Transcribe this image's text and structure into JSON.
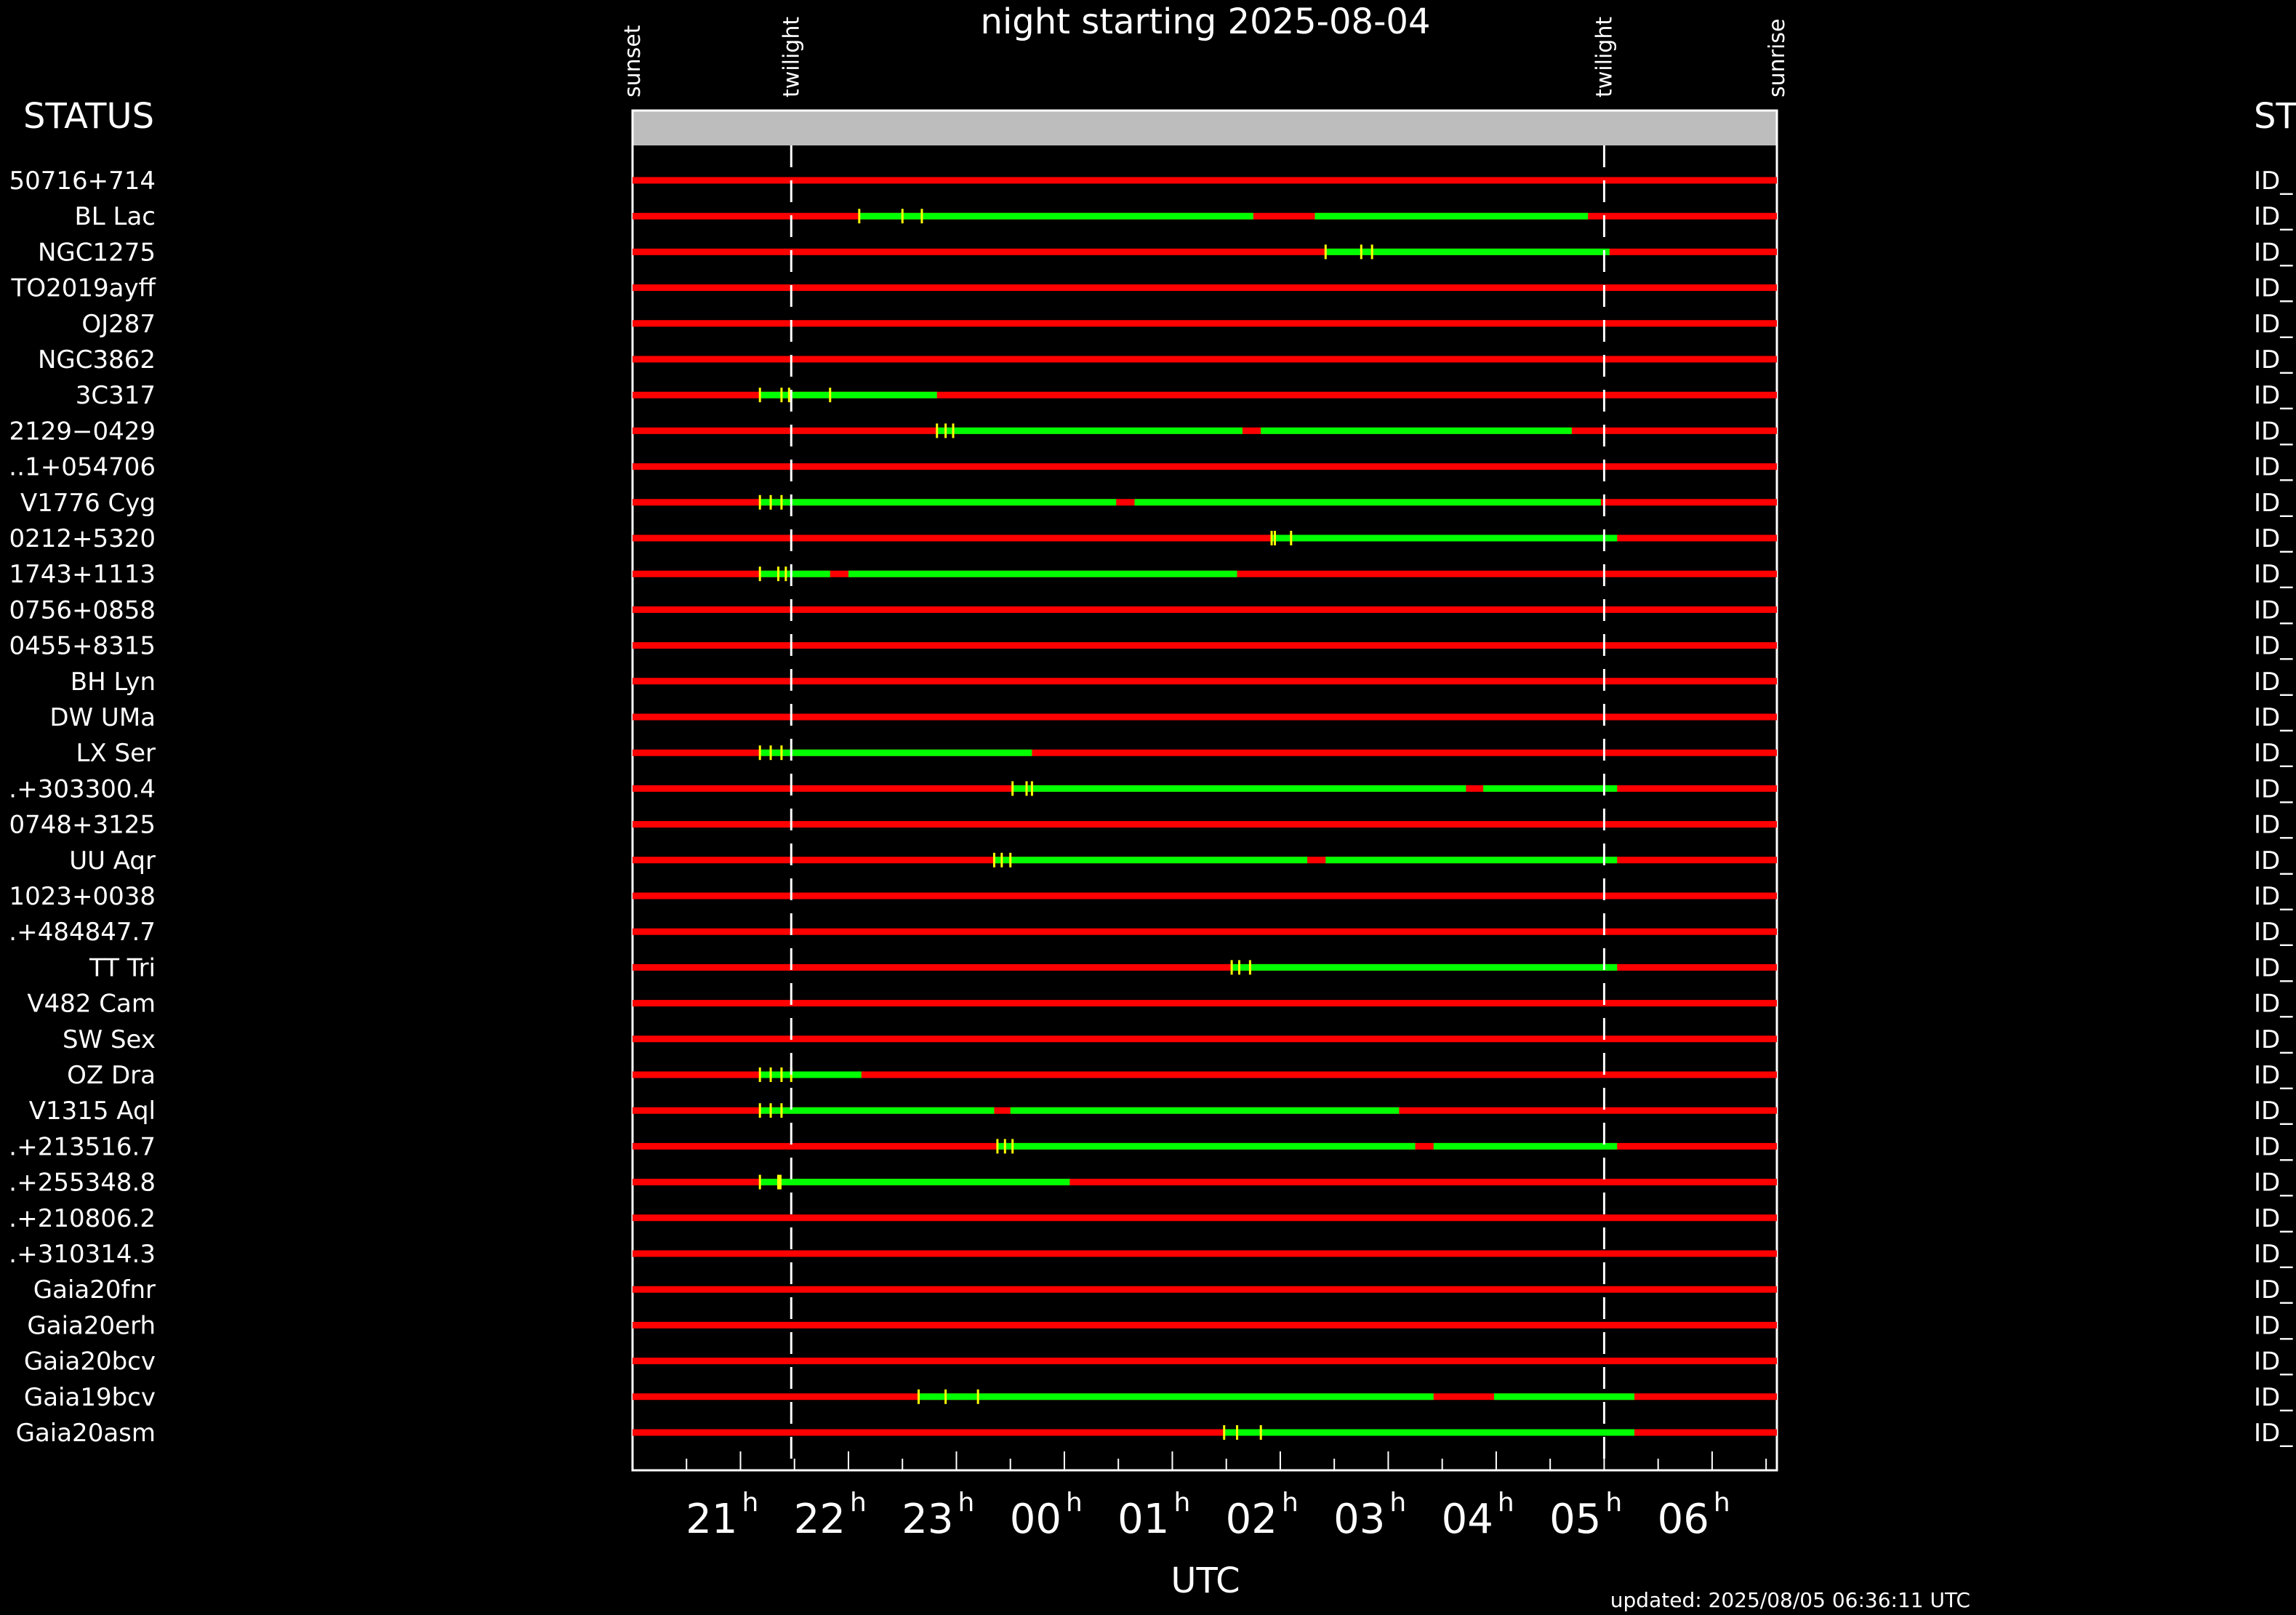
{
  "title": "night starting 2025-08-04",
  "status_header_left": "STATUS",
  "status_header_right": "ST",
  "updated": "updated: 2025/08/05 06:36:11 UTC",
  "chart_data": {
    "type": "gantt",
    "title": "night starting 2025-08-04",
    "xlabel": "UTC",
    "x_unit": "hours UTC (hour of the night; values above 24 are after midnight)",
    "xlim": [
      20.0,
      30.6
    ],
    "x_ticks": [
      {
        "value": 21,
        "label": "21",
        "sup": "h"
      },
      {
        "value": 22,
        "label": "22",
        "sup": "h"
      },
      {
        "value": 23,
        "label": "23",
        "sup": "h"
      },
      {
        "value": 24,
        "label": "00",
        "sup": "h"
      },
      {
        "value": 25,
        "label": "01",
        "sup": "h"
      },
      {
        "value": 26,
        "label": "02",
        "sup": "h"
      },
      {
        "value": 27,
        "label": "03",
        "sup": "h"
      },
      {
        "value": 28,
        "label": "04",
        "sup": "h"
      },
      {
        "value": 29,
        "label": "05",
        "sup": "h"
      },
      {
        "value": 30,
        "label": "06",
        "sup": "h"
      }
    ],
    "events": [
      {
        "label": "sunset",
        "x": 20.0
      },
      {
        "label": "twilight",
        "x": 21.47,
        "dashed": true
      },
      {
        "label": "twilight",
        "x": 29.0,
        "dashed": true
      },
      {
        "label": "sunrise",
        "x": 30.6
      }
    ],
    "colors": {
      "unavailable": "#ff0000",
      "observable": "#00ff00",
      "tick_mark": "#ffff00",
      "header_bar": "#bdbdbd",
      "background": "#000000",
      "foreground": "#ffffff"
    },
    "rows": [
      {
        "name": "50716+714",
        "status": "ID_",
        "green": []
      },
      {
        "name": "BL Lac",
        "status": "ID_",
        "green": [
          [
            22.1,
            25.75
          ],
          [
            26.32,
            28.85
          ]
        ],
        "ticks": [
          22.1,
          22.5,
          22.68
        ]
      },
      {
        "name": "NGC1275",
        "status": "ID_",
        "green": [
          [
            26.42,
            29.05
          ]
        ],
        "ticks": [
          26.42,
          26.75,
          26.85
        ]
      },
      {
        "name": "TO2019ayff",
        "status": "ID_",
        "green": []
      },
      {
        "name": "OJ287",
        "status": "ID_",
        "green": []
      },
      {
        "name": "NGC3862",
        "status": "ID_",
        "green": []
      },
      {
        "name": "3C317",
        "status": "ID_",
        "green": [
          [
            21.18,
            22.82
          ]
        ],
        "ticks": [
          21.18,
          21.38,
          21.45,
          21.83
        ]
      },
      {
        "name": "2129−0429",
        "status": "ID_",
        "green": [
          [
            22.82,
            25.65
          ],
          [
            25.82,
            28.7
          ]
        ],
        "ticks": [
          22.82,
          22.9,
          22.97
        ]
      },
      {
        "name": "․.1+054706",
        "status": "ID_",
        "green": []
      },
      {
        "name": "V1776 Cyg",
        "status": "ID_",
        "green": [
          [
            21.18,
            24.48
          ],
          [
            24.65,
            28.97
          ]
        ],
        "ticks": [
          21.18,
          21.28,
          21.38
        ]
      },
      {
        "name": "0212+5320",
        "status": "ID_",
        "green": [
          [
            25.92,
            29.12
          ]
        ],
        "ticks": [
          25.92,
          25.95,
          26.1
        ]
      },
      {
        "name": "1743+1113",
        "status": "ID_",
        "green": [
          [
            21.18,
            21.83
          ],
          [
            22.0,
            25.6
          ]
        ],
        "ticks": [
          21.18,
          21.35,
          21.42
        ]
      },
      {
        "name": "0756+0858",
        "status": "ID_",
        "green": []
      },
      {
        "name": "0455+8315",
        "status": "ID_",
        "green": []
      },
      {
        "name": "BH Lyn",
        "status": "ID_",
        "green": []
      },
      {
        "name": "DW UMa",
        "status": "ID_",
        "green": []
      },
      {
        "name": "LX Ser",
        "status": "ID_",
        "green": [
          [
            21.18,
            23.7
          ]
        ],
        "ticks": [
          21.18,
          21.28,
          21.38
        ]
      },
      {
        "name": "․+303300.4",
        "status": "ID_",
        "green": [
          [
            23.52,
            27.72
          ],
          [
            27.88,
            29.12
          ]
        ],
        "ticks": [
          23.52,
          23.65,
          23.7
        ]
      },
      {
        "name": "0748+3125",
        "status": "ID_",
        "green": []
      },
      {
        "name": "UU Aqr",
        "status": "ID_",
        "green": [
          [
            23.35,
            26.25
          ],
          [
            26.42,
            29.12
          ]
        ],
        "ticks": [
          23.35,
          23.42,
          23.5
        ]
      },
      {
        "name": "1023+0038",
        "status": "ID_",
        "green": []
      },
      {
        "name": "․+484847.7",
        "status": "ID_",
        "green": []
      },
      {
        "name": "TT Tri",
        "status": "ID_",
        "green": [
          [
            25.55,
            29.12
          ]
        ],
        "ticks": [
          25.55,
          25.62,
          25.72
        ]
      },
      {
        "name": "V482 Cam",
        "status": "ID_",
        "green": []
      },
      {
        "name": "SW Sex",
        "status": "ID_",
        "green": []
      },
      {
        "name": "OZ Dra",
        "status": "ID_",
        "green": [
          [
            21.18,
            22.12
          ]
        ],
        "ticks": [
          21.18,
          21.28,
          21.38,
          21.47
        ]
      },
      {
        "name": "V1315 Aql",
        "status": "ID_",
        "green": [
          [
            21.18,
            23.35
          ],
          [
            23.5,
            27.1
          ]
        ],
        "ticks": [
          21.18,
          21.28,
          21.38
        ]
      },
      {
        "name": "․+213516.7",
        "status": "ID_",
        "green": [
          [
            23.38,
            27.25
          ],
          [
            27.42,
            29.12
          ]
        ],
        "ticks": [
          23.38,
          23.45,
          23.52
        ]
      },
      {
        "name": "․+255348.8",
        "status": "ID_",
        "green": [
          [
            21.18,
            24.05
          ]
        ],
        "ticks": [
          21.18,
          21.35,
          21.37
        ]
      },
      {
        "name": "․+210806.2",
        "status": "ID_",
        "green": []
      },
      {
        "name": "․+310314.3",
        "status": "ID_",
        "green": []
      },
      {
        "name": "Gaia20fnr",
        "status": "ID_",
        "green": []
      },
      {
        "name": "Gaia20erh",
        "status": "ID_",
        "green": []
      },
      {
        "name": "Gaia20bcv",
        "status": "ID_",
        "green": []
      },
      {
        "name": "Gaia19bcv",
        "status": "ID_",
        "green": [
          [
            22.65,
            27.42
          ],
          [
            27.98,
            29.28
          ]
        ],
        "ticks": [
          22.65,
          22.9,
          23.2
        ]
      },
      {
        "name": "Gaia20asm",
        "status": "ID_",
        "green": [
          [
            25.48,
            29.28
          ]
        ],
        "ticks": [
          25.48,
          25.6,
          25.82
        ]
      }
    ]
  }
}
